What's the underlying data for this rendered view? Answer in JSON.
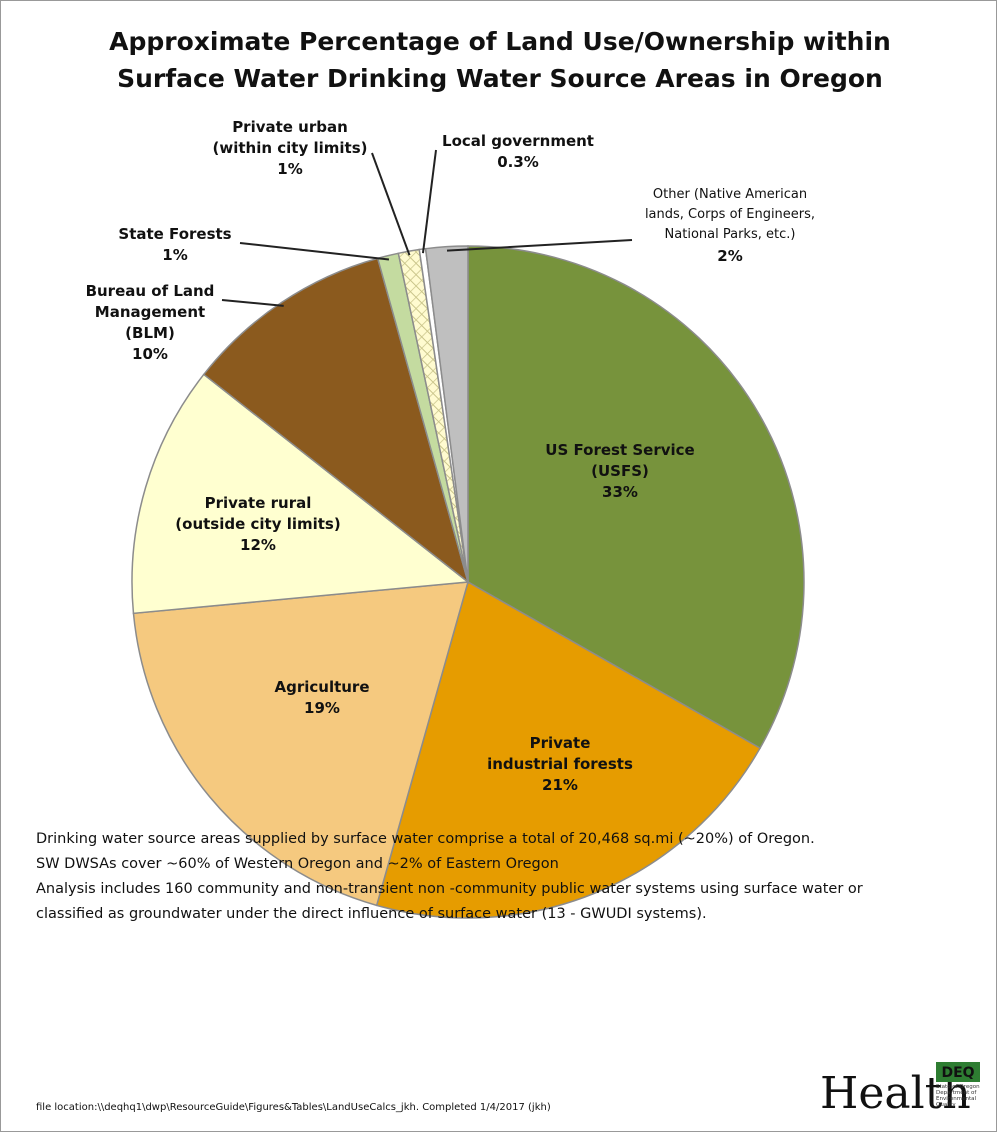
{
  "chart_data": {
    "type": "pie",
    "title": "Approximate Percentage of Land Use/Ownership within\nSurface Water Drinking Water Source Areas in Oregon",
    "categories": [
      "US Forest Service\n(USFS)",
      "Private\nindustrial forests",
      "Agriculture",
      "Private rural\n(outside city limits)",
      "Bureau of Land\nManagement\n(BLM)",
      "State Forests",
      "Private urban\n(within city limits)",
      "Local government",
      "Other (Native American\nlands, Corps of Engineers,\nNational Parks, etc.)"
    ],
    "values": [
      33,
      21,
      19,
      12,
      10,
      1,
      1,
      0.3,
      2
    ],
    "value_labels": [
      "33%",
      "21%",
      "19%",
      "12%",
      "10%",
      "1%",
      "1%",
      "0.3%",
      "2%"
    ],
    "colors": [
      "#77933c",
      "#e69c00",
      "#f5c97f",
      "#ffffd0",
      "#8b5a1e",
      "#c4dba0",
      "#fffbd0",
      "#ffffff",
      "#bfbfbf"
    ],
    "hatched": [
      false,
      false,
      false,
      false,
      false,
      false,
      true,
      false,
      false
    ]
  },
  "notes": [
    "Drinking water source areas supplied by surface water comprise a total of 20,468 sq.mi (~20%) of Oregon.",
    "SW DWSAs cover ~60% of Western Oregon  and ~2% of Eastern Oregon",
    "Analysis includes 160 community and non-transient non -community public water systems using surface water or",
    "classified as groundwater under the direct influence of surface water (13 - GWUDI systems)."
  ],
  "file_location": "file location:\\\\deqhq1\\dwp\\ResourceGuide\\Figures&Tables\\LandUseCalcs_jkh.  Completed 1/4/2017 (jkh)",
  "logos": {
    "health": "Health",
    "deq": "DEQ",
    "deq_sub": "State of Oregon Department of Environmental Quality"
  }
}
